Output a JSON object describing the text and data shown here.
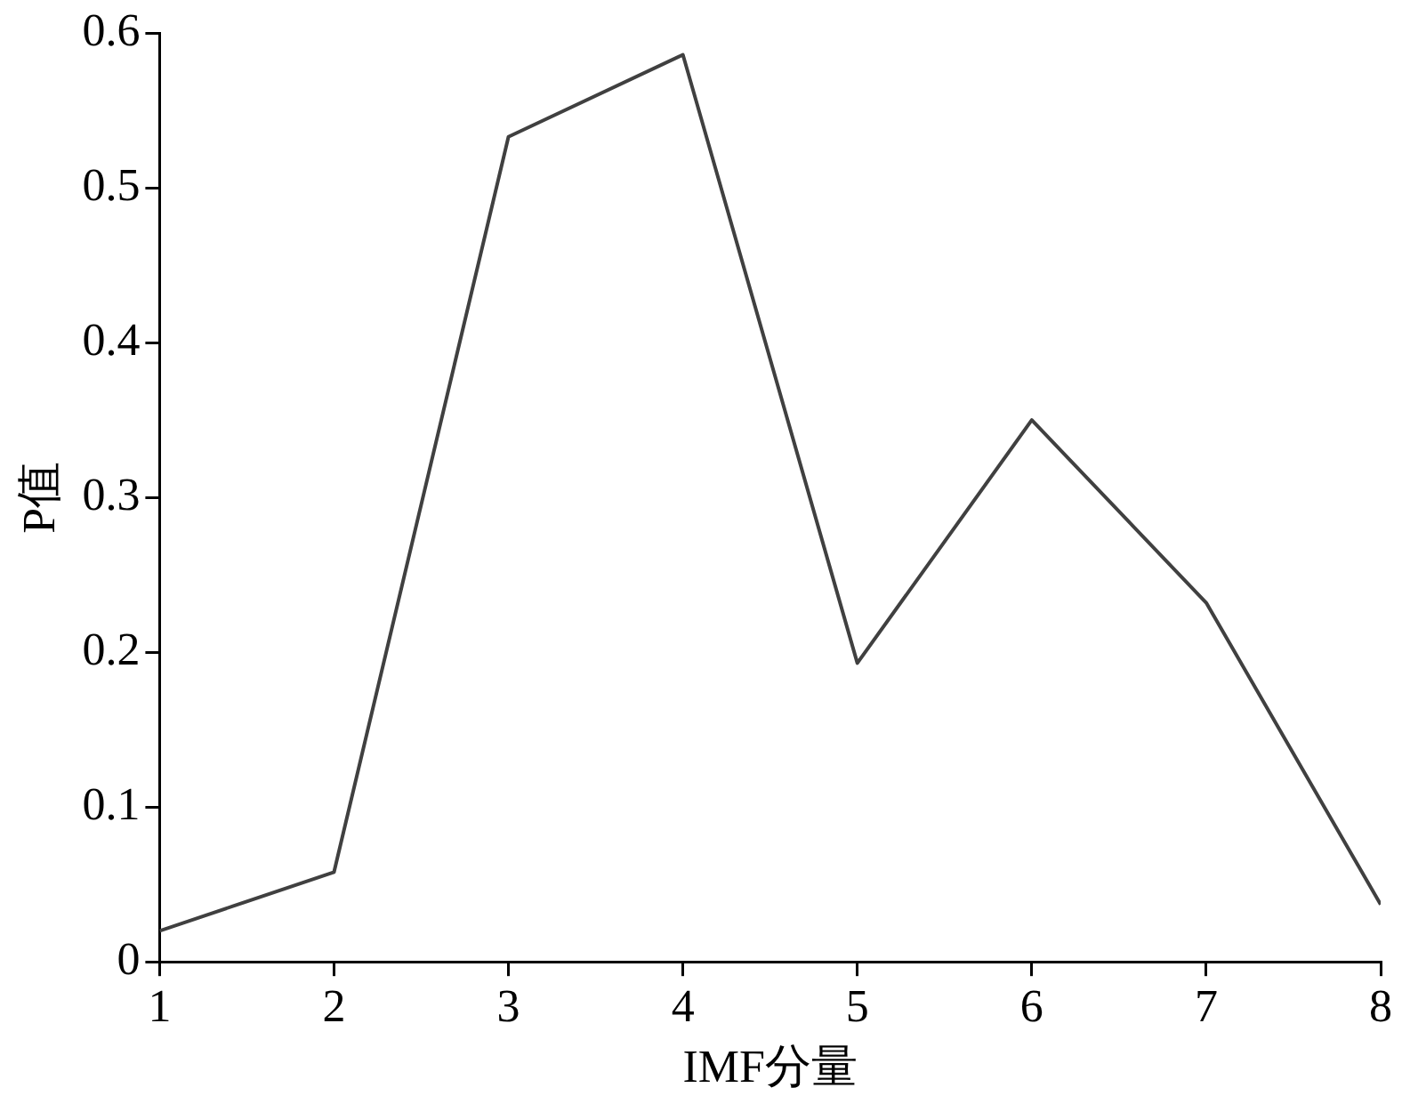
{
  "chart_data": {
    "type": "line",
    "xlabel": "IMF分量",
    "ylabel": "P值",
    "x": [
      1,
      2,
      3,
      4,
      5,
      6,
      7,
      8
    ],
    "series": [
      {
        "color": "#404040",
        "values": [
          0.02,
          0.058,
          0.533,
          0.586,
          0.193,
          0.35,
          0.232,
          0.037
        ]
      }
    ],
    "xlim": [
      1,
      8
    ],
    "xticks": [
      1,
      2,
      3,
      4,
      5,
      6,
      7,
      8
    ],
    "ylim": [
      0,
      0.6
    ],
    "yticks": [
      0,
      0.1,
      0.2,
      0.3,
      0.4,
      0.5,
      0.6
    ],
    "grid": false,
    "legend": false,
    "marker": "none",
    "line_style": "solid"
  }
}
